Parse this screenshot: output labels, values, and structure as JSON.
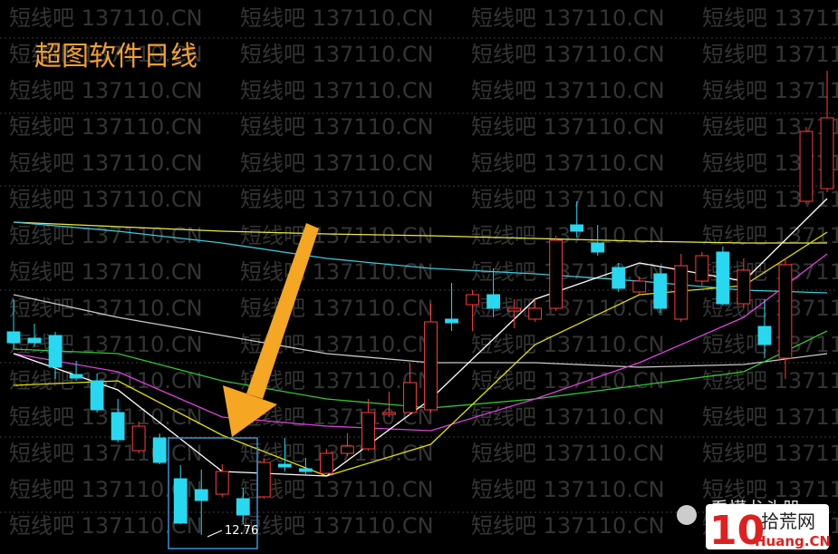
{
  "chart_data": {
    "type": "candlestick",
    "title": "超图软件日线",
    "watermark": "短线吧 137110.CN",
    "annotation": "12.76",
    "ylim": [
      12.55,
      18.66
    ],
    "up_color": "#ff3c3c",
    "down_color": "#28d8f0",
    "candles": {
      "open": [
        15.0,
        14.93,
        14.96,
        14.53,
        14.46,
        14.11,
        13.69,
        13.83,
        13.38,
        13.26,
        13.21,
        13.16,
        13.18,
        13.54,
        13.49,
        13.44,
        13.66,
        13.71,
        14.09,
        14.11,
        14.14,
        15.14,
        15.3,
        15.41,
        15.23,
        15.14,
        15.26,
        16.18,
        15.98,
        15.71,
        15.44,
        15.64,
        15.14,
        15.56,
        15.88,
        15.31,
        15.06,
        14.71,
        16.44,
        16.58
      ],
      "high": [
        15.36,
        15.09,
        15.0,
        14.68,
        14.54,
        14.26,
        14.01,
        13.88,
        13.53,
        13.48,
        13.54,
        13.28,
        13.61,
        13.83,
        13.61,
        13.71,
        13.88,
        14.26,
        14.34,
        14.66,
        15.31,
        15.54,
        15.46,
        15.7,
        15.36,
        15.36,
        16.06,
        16.44,
        16.18,
        15.76,
        15.61,
        15.71,
        15.86,
        15.88,
        15.94,
        15.81,
        15.36,
        15.81,
        17.26,
        17.88
      ],
      "low": [
        14.81,
        14.84,
        14.48,
        14.46,
        14.11,
        13.78,
        13.66,
        13.54,
        12.88,
        12.76,
        13.18,
        12.88,
        13.16,
        13.46,
        13.41,
        13.43,
        13.63,
        13.69,
        14.06,
        14.08,
        14.11,
        15.01,
        15.01,
        15.16,
        15.04,
        15.11,
        15.23,
        16.04,
        15.84,
        15.44,
        15.41,
        15.21,
        15.11,
        15.51,
        15.29,
        15.26,
        14.71,
        14.48,
        16.41,
        16.54
      ],
      "close": [
        14.88,
        14.88,
        14.61,
        14.49,
        14.14,
        13.81,
        13.96,
        13.56,
        12.89,
        13.14,
        13.46,
        12.98,
        13.56,
        13.51,
        13.46,
        13.66,
        13.74,
        14.11,
        14.11,
        14.44,
        15.11,
        15.1,
        15.41,
        15.26,
        15.26,
        15.26,
        16.01,
        16.11,
        15.88,
        15.48,
        15.56,
        15.26,
        15.73,
        15.84,
        15.31,
        15.68,
        14.86,
        15.74,
        17.21,
        17.36
      ]
    },
    "lines": [
      {
        "color": "#e8e84a",
        "x": [
          0,
          5,
          10,
          15,
          20,
          25,
          30,
          35,
          39
        ],
        "values": [
          16.21,
          16.16,
          16.11,
          16.08,
          16.06,
          16.03,
          16.0,
          15.98,
          15.98
        ]
      },
      {
        "color": "#3ac8dc",
        "x": [
          0,
          5,
          10,
          15,
          20,
          25,
          30,
          35,
          39
        ],
        "values": [
          16.21,
          16.11,
          15.98,
          15.81,
          15.7,
          15.64,
          15.56,
          15.46,
          15.43
        ]
      },
      {
        "color": "#c8c8c8",
        "x": [
          0,
          5,
          10,
          15,
          20,
          25,
          30,
          35,
          39
        ],
        "values": [
          15.41,
          15.16,
          14.96,
          14.76,
          14.66,
          14.66,
          14.61,
          14.64,
          14.76
        ]
      },
      {
        "color": "#2ec82e",
        "x": [
          0,
          5,
          10,
          15,
          20,
          25,
          30,
          35,
          39
        ],
        "values": [
          14.81,
          14.76,
          14.46,
          14.26,
          14.16,
          14.26,
          14.41,
          14.56,
          15.01
        ]
      },
      {
        "color": "#e040e0",
        "x": [
          0,
          5,
          10,
          15,
          20,
          25,
          30,
          35,
          39
        ],
        "values": [
          14.76,
          14.56,
          14.06,
          13.96,
          13.91,
          14.26,
          14.66,
          15.16,
          15.86
        ]
      },
      {
        "color": "#e0e000",
        "x": [
          0,
          5,
          10,
          15,
          20,
          25,
          30,
          35,
          39
        ],
        "values": [
          14.41,
          14.46,
          13.86,
          13.41,
          13.76,
          14.86,
          15.41,
          15.51,
          16.1
        ]
      },
      {
        "color": "#ffffff",
        "x": [
          0,
          5,
          10,
          15,
          20,
          25,
          30,
          35,
          39
        ],
        "values": [
          14.76,
          14.36,
          13.46,
          13.41,
          14.26,
          15.36,
          15.76,
          15.56,
          16.47
        ]
      }
    ]
  },
  "logos": {
    "wechat": "看懂龙头股",
    "site_number": "10",
    "site_name": "拾荒网",
    "site_url": "Huang.CN"
  }
}
